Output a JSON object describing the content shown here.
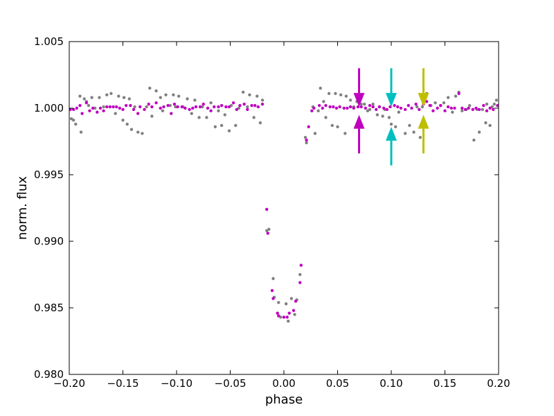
{
  "chart_data": {
    "type": "scatter",
    "title": "",
    "xlabel": "phase",
    "ylabel": "norm. flux",
    "xlim": [
      -0.2,
      0.2
    ],
    "ylim": [
      0.98,
      1.005
    ],
    "grid": false,
    "x_ticks": [
      -0.2,
      -0.15,
      -0.1,
      -0.05,
      0.0,
      0.05,
      0.1,
      0.15,
      0.2
    ],
    "x_tick_labels": [
      "−0.20",
      "−0.15",
      "−0.10",
      "−0.05",
      "0.00",
      "0.05",
      "0.10",
      "0.15",
      "0.20"
    ],
    "y_ticks": [
      0.98,
      0.985,
      0.99,
      0.995,
      1.0,
      1.005
    ],
    "y_tick_labels": [
      "0.980",
      "0.985",
      "0.990",
      "0.995",
      "1.000",
      "1.005"
    ],
    "series": [
      {
        "color": "#808080",
        "points": [
          [
            -0.198,
            0.9992
          ],
          [
            -0.196,
            0.9991
          ],
          [
            -0.194,
            0.9988
          ],
          [
            -0.19,
            1.0009
          ],
          [
            -0.189,
            0.9982
          ],
          [
            -0.186,
            1.0007
          ],
          [
            -0.184,
            1.0005
          ],
          [
            -0.182,
            1.0002
          ],
          [
            -0.179,
            1.0008
          ],
          [
            -0.176,
            1.0
          ],
          [
            -0.172,
            1.0008
          ],
          [
            -0.168,
            1.0001
          ],
          [
            -0.165,
            1.001
          ],
          [
            -0.161,
            1.0011
          ],
          [
            -0.157,
            0.9996
          ],
          [
            -0.154,
            1.0009
          ],
          [
            -0.15,
            0.9991
          ],
          [
            -0.149,
            1.0008
          ],
          [
            -0.146,
            0.9988
          ],
          [
            -0.144,
            1.0007
          ],
          [
            -0.142,
            0.9984
          ],
          [
            -0.139,
            1.0001
          ],
          [
            -0.136,
            0.9982
          ],
          [
            -0.132,
            0.9981
          ],
          [
            -0.128,
            1.0001
          ],
          [
            -0.125,
            1.0015
          ],
          [
            -0.123,
            0.9994
          ],
          [
            -0.119,
            1.0013
          ],
          [
            -0.115,
            1.0008
          ],
          [
            -0.113,
            0.9998
          ],
          [
            -0.11,
            1.001
          ],
          [
            -0.106,
            1.0002
          ],
          [
            -0.103,
            1.001
          ],
          [
            -0.101,
            1.0001
          ],
          [
            -0.098,
            1.0009
          ],
          [
            -0.094,
            1.0001
          ],
          [
            -0.09,
            1.0007
          ],
          [
            -0.086,
            0.9996
          ],
          [
            -0.083,
            1.0006
          ],
          [
            -0.079,
            0.9993
          ],
          [
            -0.076,
            1.0001
          ],
          [
            -0.072,
            0.9993
          ],
          [
            -0.068,
            1.0004
          ],
          [
            -0.064,
            0.9986
          ],
          [
            -0.061,
            0.9998
          ],
          [
            -0.058,
            0.9987
          ],
          [
            -0.055,
            0.9995
          ],
          [
            -0.051,
            0.9983
          ],
          [
            -0.049,
            1.0002
          ],
          [
            -0.045,
            0.9987
          ],
          [
            -0.042,
            1.0
          ],
          [
            -0.038,
            1.0012
          ],
          [
            -0.034,
            1.0001
          ],
          [
            -0.032,
            1.001
          ],
          [
            -0.028,
            0.9993
          ],
          [
            -0.025,
            1.0009
          ],
          [
            -0.022,
            0.9989
          ],
          [
            -0.02,
            1.0006
          ],
          [
            -0.016,
            0.9908
          ],
          [
            -0.014,
            0.9909
          ],
          [
            -0.01,
            0.9872
          ],
          [
            -0.009,
            0.9858
          ],
          [
            -0.005,
            0.9854
          ],
          [
            -0.003,
            0.9843
          ],
          [
            0.002,
            0.9853
          ],
          [
            0.004,
            0.984
          ],
          [
            0.007,
            0.9857
          ],
          [
            0.01,
            0.9845
          ],
          [
            0.012,
            0.9856
          ],
          [
            0.015,
            0.9875
          ],
          [
            0.02,
            0.9978
          ],
          [
            0.021,
            0.9974
          ],
          [
            0.027,
            1.0001
          ],
          [
            0.029,
            0.9981
          ],
          [
            0.032,
            0.9998
          ],
          [
            0.034,
            1.0015
          ],
          [
            0.037,
            1.0005
          ],
          [
            0.039,
            0.9993
          ],
          [
            0.042,
            1.0011
          ],
          [
            0.045,
            0.9987
          ],
          [
            0.048,
            1.0011
          ],
          [
            0.05,
            0.9986
          ],
          [
            0.053,
            1.001
          ],
          [
            0.057,
            0.9981
          ],
          [
            0.058,
            1.0009
          ],
          [
            0.062,
            1.0006
          ],
          [
            0.065,
            1.0001
          ],
          [
            0.068,
            1.0005
          ],
          [
            0.072,
            1.0003
          ],
          [
            0.075,
            1.0003
          ],
          [
            0.078,
            0.9998
          ],
          [
            0.08,
            0.9999
          ],
          [
            0.083,
            1.0003
          ],
          [
            0.087,
            0.9995
          ],
          [
            0.089,
            1.0001
          ],
          [
            0.092,
            0.9994
          ],
          [
            0.094,
            0.9999
          ],
          [
            0.098,
            0.9993
          ],
          [
            0.1,
            0.9988
          ],
          [
            0.104,
            0.9986
          ],
          [
            0.107,
            0.9997
          ],
          [
            0.113,
            0.9981
          ],
          [
            0.117,
            0.9987
          ],
          [
            0.121,
            0.9982
          ],
          [
            0.124,
            1.0001
          ],
          [
            0.127,
            0.9978
          ],
          [
            0.129,
            1.0001
          ],
          [
            0.133,
            1.0011
          ],
          [
            0.137,
            1.0002
          ],
          [
            0.141,
            1.0004
          ],
          [
            0.146,
            1.0002
          ],
          [
            0.149,
            1.0004
          ],
          [
            0.153,
            1.0008
          ],
          [
            0.157,
            0.9997
          ],
          [
            0.16,
            1.0009
          ],
          [
            0.163,
            1.0012
          ],
          [
            0.166,
            0.9998
          ],
          [
            0.17,
            0.9999
          ],
          [
            0.173,
            1.0002
          ],
          [
            0.177,
            0.9976
          ],
          [
            0.18,
            0.9999
          ],
          [
            0.182,
            0.9982
          ],
          [
            0.185,
            0.9999
          ],
          [
            0.188,
            0.9989
          ],
          [
            0.189,
            1.0003
          ],
          [
            0.192,
            0.9987
          ],
          [
            0.194,
            1.0001
          ],
          [
            0.196,
            1.0003
          ],
          [
            0.198,
            1.0006
          ]
        ]
      },
      {
        "color": "#bf00bf",
        "points": [
          [
            -0.199,
            0.9999
          ],
          [
            -0.196,
            0.9999
          ],
          [
            -0.193,
            1.0
          ],
          [
            -0.19,
            1.0002
          ],
          [
            -0.188,
            0.9996
          ],
          [
            -0.184,
            1.0004
          ],
          [
            -0.181,
            0.9998
          ],
          [
            -0.178,
            1.0
          ],
          [
            -0.174,
            0.9997
          ],
          [
            -0.171,
            1.0
          ],
          [
            -0.168,
            0.9998
          ],
          [
            -0.165,
            1.0001
          ],
          [
            -0.162,
            1.0001
          ],
          [
            -0.159,
            1.0001
          ],
          [
            -0.156,
            1.0001
          ],
          [
            -0.153,
            1.0
          ],
          [
            -0.15,
            0.9999
          ],
          [
            -0.147,
            1.0002
          ],
          [
            -0.143,
            1.0002
          ],
          [
            -0.14,
            0.9999
          ],
          [
            -0.136,
            0.9996
          ],
          [
            -0.134,
            1.0001
          ],
          [
            -0.13,
            0.9999
          ],
          [
            -0.126,
            1.0003
          ],
          [
            -0.123,
            1.0001
          ],
          [
            -0.119,
            1.0004
          ],
          [
            -0.115,
            1.0
          ],
          [
            -0.112,
            1.0001
          ],
          [
            -0.108,
            1.0002
          ],
          [
            -0.105,
            0.9996
          ],
          [
            -0.102,
            1.0003
          ],
          [
            -0.099,
            1.0001
          ],
          [
            -0.095,
            1.0001
          ],
          [
            -0.092,
            1.0
          ],
          [
            -0.088,
            0.9999
          ],
          [
            -0.085,
            1.0
          ],
          [
            -0.082,
            1.0001
          ],
          [
            -0.078,
            1.0001
          ],
          [
            -0.075,
            1.0003
          ],
          [
            -0.071,
            1.0
          ],
          [
            -0.068,
            0.9998
          ],
          [
            -0.065,
            1.0001
          ],
          [
            -0.061,
            1.0001
          ],
          [
            -0.058,
            1.0002
          ],
          [
            -0.054,
            1.0001
          ],
          [
            -0.051,
            1.0001
          ],
          [
            -0.047,
            1.0004
          ],
          [
            -0.044,
            0.9999
          ],
          [
            -0.041,
            1.0002
          ],
          [
            -0.037,
            1.0003
          ],
          [
            -0.034,
            0.9999
          ],
          [
            -0.03,
            1.0002
          ],
          [
            -0.027,
            1.0002
          ],
          [
            -0.024,
            1.0001
          ],
          [
            -0.02,
            1.0003
          ],
          [
            -0.016,
            0.9924
          ],
          [
            -0.015,
            0.9906
          ],
          [
            -0.011,
            0.9863
          ],
          [
            -0.01,
            0.9857
          ],
          [
            -0.006,
            0.9846
          ],
          [
            -0.005,
            0.9844
          ],
          [
            0.0,
            0.9843
          ],
          [
            0.003,
            0.9843
          ],
          [
            0.005,
            0.9846
          ],
          [
            0.009,
            0.9848
          ],
          [
            0.011,
            0.9855
          ],
          [
            0.015,
            0.9869
          ],
          [
            0.016,
            0.9882
          ],
          [
            0.021,
            0.9976
          ],
          [
            0.023,
            0.9986
          ],
          [
            0.026,
            0.9998
          ],
          [
            0.028,
            1.0
          ],
          [
            0.033,
            1.0002
          ],
          [
            0.036,
            1.0
          ],
          [
            0.039,
            1.0002
          ],
          [
            0.043,
            1.0001
          ],
          [
            0.046,
            1.0001
          ],
          [
            0.049,
            1.0
          ],
          [
            0.052,
            1.0001
          ],
          [
            0.056,
            1.0
          ],
          [
            0.059,
            1.0
          ],
          [
            0.062,
            1.0001
          ],
          [
            0.065,
            1.0
          ],
          [
            0.069,
            1.0001
          ],
          [
            0.072,
            1.0001
          ],
          [
            0.076,
            1.0
          ],
          [
            0.08,
            1.0002
          ],
          [
            0.083,
            1.0001
          ],
          [
            0.086,
            0.9999
          ],
          [
            0.089,
            1.0001
          ],
          [
            0.093,
            1.0
          ],
          [
            0.096,
            0.9999
          ],
          [
            0.099,
            1.0001
          ],
          [
            0.103,
            1.0002
          ],
          [
            0.106,
            1.0001
          ],
          [
            0.109,
            1.0
          ],
          [
            0.113,
            0.9999
          ],
          [
            0.116,
            1.0002
          ],
          [
            0.119,
            1.0
          ],
          [
            0.123,
            1.0003
          ],
          [
            0.126,
            0.9999
          ],
          [
            0.13,
            1.0003
          ],
          [
            0.133,
            1.0005
          ],
          [
            0.136,
            1.0002
          ],
          [
            0.139,
            0.9998
          ],
          [
            0.143,
            1.0
          ],
          [
            0.146,
            1.0002
          ],
          [
            0.15,
            0.9998
          ],
          [
            0.153,
            1.0001
          ],
          [
            0.156,
            1.0
          ],
          [
            0.159,
            1.0
          ],
          [
            0.163,
            1.0011
          ],
          [
            0.166,
            1.0
          ],
          [
            0.169,
            0.9999
          ],
          [
            0.172,
            1.0
          ],
          [
            0.176,
            0.9999
          ],
          [
            0.179,
            1.0
          ],
          [
            0.182,
            0.9999
          ],
          [
            0.186,
            1.0002
          ],
          [
            0.189,
            0.9998
          ],
          [
            0.192,
            1.0
          ],
          [
            0.195,
            0.9999
          ],
          [
            0.199,
            1.0002
          ]
        ]
      }
    ],
    "markers": [
      {
        "x": 0.07,
        "color": "#bf00bf",
        "down_arrow_y": [
          1.003,
          1.0001
        ],
        "up_arrow_y": [
          0.9966,
          0.9995
        ]
      },
      {
        "x": 0.1,
        "color": "#00bfbf",
        "down_arrow_y": [
          1.003,
          1.0001
        ],
        "up_arrow_y": [
          0.9957,
          0.9986
        ]
      },
      {
        "x": 0.13,
        "color": "#bfbf00",
        "down_arrow_y": [
          1.003,
          1.0001
        ],
        "up_arrow_y": [
          0.9966,
          0.9995
        ]
      }
    ]
  }
}
